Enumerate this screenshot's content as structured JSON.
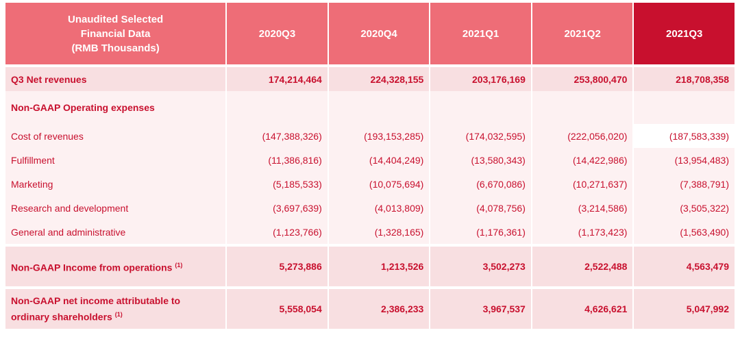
{
  "header": {
    "title_line1": "Unaudited Selected",
    "title_line2": "Financial Data",
    "title_line3": "(RMB Thousands)",
    "periods": [
      "2020Q3",
      "2020Q4",
      "2021Q1",
      "2021Q2",
      "2021Q3"
    ]
  },
  "colors": {
    "header_bg": "#ee6d77",
    "highlight_bg": "#c8102e",
    "text": "#c8102e"
  },
  "rows": {
    "net_revenues": {
      "label": "Q3 Net revenues",
      "values": [
        "174,214,464",
        "224,328,155",
        "203,176,169",
        "253,800,470",
        "218,708,358"
      ]
    },
    "opex_header": {
      "label": "Non-GAAP Operating expenses"
    },
    "cost_of_revenues": {
      "label": "Cost of revenues",
      "values": [
        "(147,388,326)",
        "(193,153,285)",
        "(174,032,595)",
        "(222,056,020)",
        "(187,583,339)"
      ]
    },
    "fulfillment": {
      "label": "Fulfillment",
      "values": [
        "(11,386,816)",
        "(14,404,249)",
        "(13,580,343)",
        "(14,422,986)",
        "(13,954,483)"
      ]
    },
    "marketing": {
      "label": "Marketing",
      "values": [
        "(5,185,533)",
        "(10,075,694)",
        "(6,670,086)",
        "(10,271,637)",
        "(7,388,791)"
      ]
    },
    "research": {
      "label": "Research and development",
      "values": [
        "(3,697,639)",
        "(4,013,809)",
        "(4,078,756)",
        "(3,214,586)",
        "(3,505,322)"
      ]
    },
    "general": {
      "label": "General and administrative",
      "values": [
        "(1,123,766)",
        "(1,328,165)",
        "(1,176,361)",
        "(1,173,423)",
        "(1,563,490)"
      ]
    },
    "income_ops": {
      "label": "Non-GAAP Income from operations",
      "footnote": "(1)",
      "values": [
        "5,273,886",
        "1,213,526",
        "3,502,273",
        "2,522,488",
        "4,563,479"
      ]
    },
    "net_income": {
      "label_line1": "Non-GAAP net income attributable to",
      "label_line2": "ordinary shareholders",
      "footnote": "(1)",
      "values": [
        "5,558,054",
        "2,386,233",
        "3,967,537",
        "4,626,621",
        "5,047,992"
      ]
    }
  }
}
